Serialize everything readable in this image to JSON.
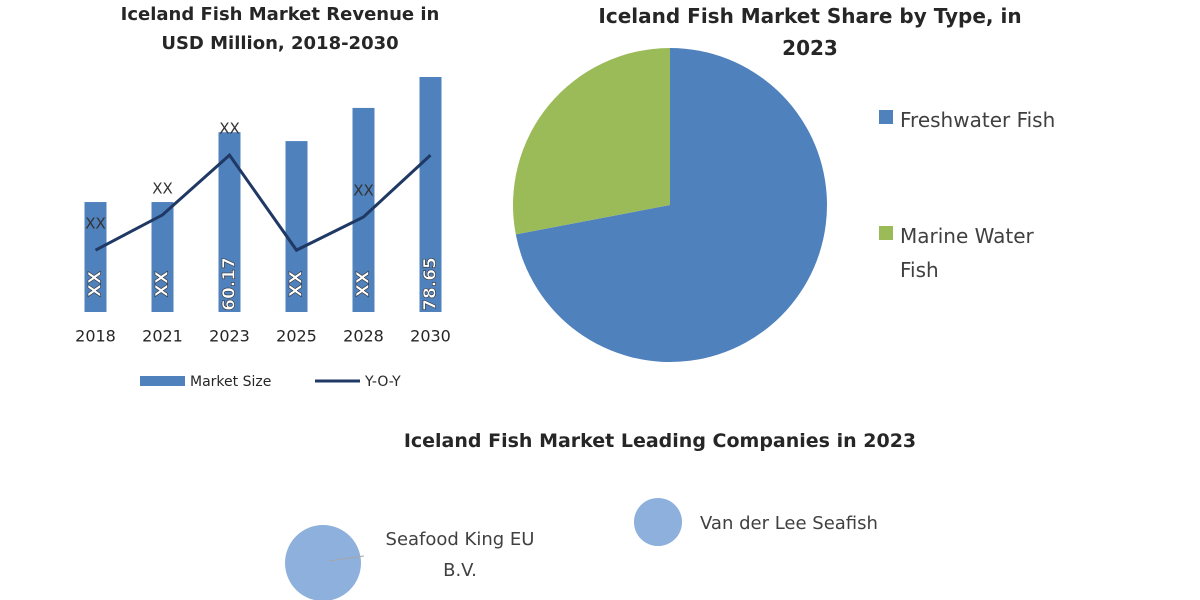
{
  "chart_data": [
    {
      "type": "combo",
      "title": "Iceland Fish Market Revenue in USD Million, 2018-2030",
      "categories": [
        "2018",
        "2021",
        "2023",
        "2025",
        "2028",
        "2030"
      ],
      "series": [
        {
          "name": "Market Size",
          "type": "bar",
          "color": "#4f81bd",
          "values": [
            36.8,
            36.8,
            60.17,
            57.2,
            68.3,
            78.65
          ],
          "value_labels": [
            "XX",
            "XX",
            "60.17",
            "XX",
            "XX",
            "78.65"
          ]
        },
        {
          "name": "Y-O-Y",
          "type": "line",
          "color": "#1f3864",
          "values": [
            20.7,
            32.5,
            52.5,
            20.7,
            31.8,
            52.5
          ],
          "value_labels": [
            "XX",
            "XX",
            "XX",
            null,
            "XX",
            null
          ]
        }
      ],
      "legend": "bottom"
    },
    {
      "type": "pie",
      "title": "Iceland Fish Market Share by Type, in 2023",
      "categories": [
        "Freshwater Fish",
        "Marine Water Fish"
      ],
      "values": [
        72,
        28
      ],
      "colors": [
        "#4f81bd",
        "#9bbb59"
      ],
      "legend": "right"
    },
    {
      "type": "bubble",
      "title": "Iceland Fish Market Leading Companies in 2023",
      "categories": [
        "Seafood King EU B.V.",
        "Van der Lee Seafish"
      ],
      "values": [
        100,
        40
      ],
      "color": "#8eb0dc"
    }
  ]
}
